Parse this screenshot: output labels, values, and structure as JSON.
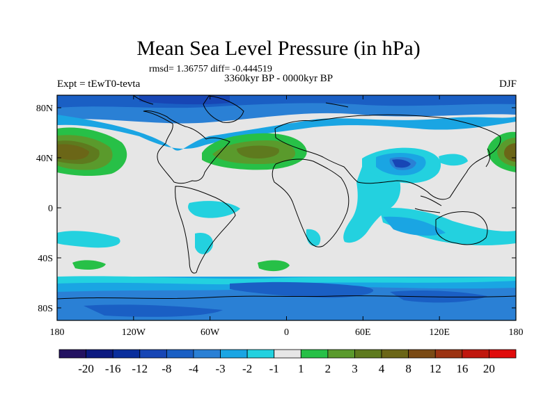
{
  "title": "Mean Sea Level Pressure (in hPa)",
  "stats": "rmsd= 1.36757 diff= -0.444519",
  "experiment": "Expt = tEwT0-tevta",
  "period": "3360kyr BP - 0000kyr BP",
  "season": "DJF",
  "map": {
    "projection": "cylindrical-equidistant",
    "lon_range": [
      -180,
      180
    ],
    "lat_range": [
      -90,
      90
    ],
    "background_color": "#e6e6e6",
    "coastline_color": "#000000",
    "x_ticks": [
      {
        "value": -180,
        "label": "180"
      },
      {
        "value": -120,
        "label": "120W"
      },
      {
        "value": -60,
        "label": "60W"
      },
      {
        "value": 0,
        "label": "0"
      },
      {
        "value": 60,
        "label": "60E"
      },
      {
        "value": 120,
        "label": "120E"
      },
      {
        "value": 180,
        "label": "180"
      }
    ],
    "y_ticks": [
      {
        "value": 80,
        "label": "80N"
      },
      {
        "value": 40,
        "label": "40N"
      },
      {
        "value": 0,
        "label": "0"
      },
      {
        "value": -40,
        "label": "40S"
      },
      {
        "value": -80,
        "label": "80S"
      }
    ]
  },
  "colorbar": {
    "colors": [
      "#231261",
      "#0c1a80",
      "#0a2e9c",
      "#1746b5",
      "#1a5fc4",
      "#2a80d5",
      "#1aa5e3",
      "#23d1df",
      "#e6e6e6",
      "#27c047",
      "#5a9a2c",
      "#5e7a1e",
      "#6b6617",
      "#7a4a14",
      "#9c3312",
      "#c0170e",
      "#e00b0b"
    ],
    "labels": [
      "-20",
      "-16",
      "-12",
      "-8",
      "-4",
      "-3",
      "-2",
      "-1",
      "1",
      "2",
      "3",
      "4",
      "8",
      "12",
      "16",
      "20"
    ]
  }
}
